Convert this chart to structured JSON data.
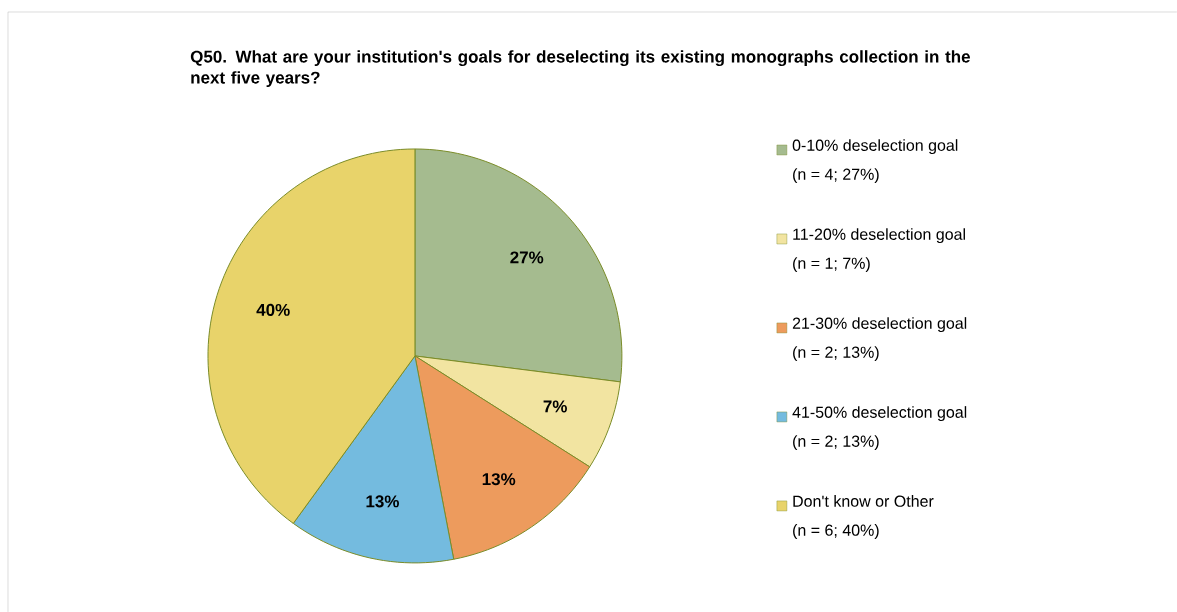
{
  "chart_data": {
    "type": "pie",
    "title": "Q50. What are your institution's goals for deselecting its existing monographs collection in the next five years?",
    "categories": [
      "0-10% deselection goal\n(n = 4; 27%)",
      "11-20% deselection goal\n(n = 1; 7%)",
      "21-30% deselection goal\n(n = 2; 13%)",
      "41-50% deselection goal\n(n = 2; 13%)",
      "Don't know or Other\n(n = 6; 40%)"
    ],
    "values": [
      27,
      7,
      13,
      13,
      40
    ],
    "colors": [
      "#a5bb8f",
      "#f2e4a1",
      "#ed9b5d",
      "#74bbdf",
      "#e8d36a"
    ],
    "value_labels": [
      "27%",
      "7%",
      "13%",
      "13%",
      "40%"
    ],
    "legend": "right"
  }
}
